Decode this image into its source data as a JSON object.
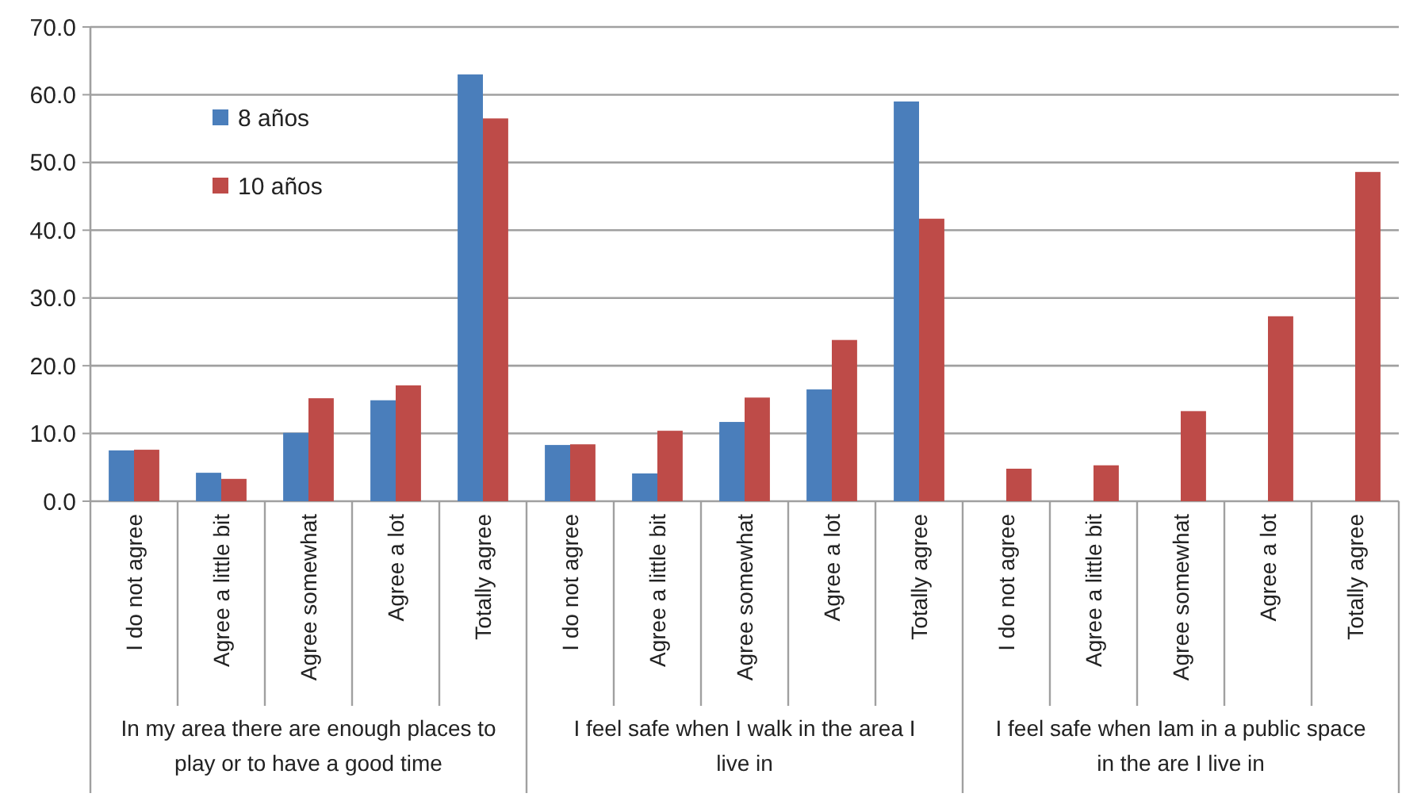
{
  "chart_data": {
    "type": "bar",
    "categories": [
      "I do not agree",
      "Agree a little bit",
      "Agree somewhat",
      "Agree a lot",
      "Totally agree",
      "I do not agree",
      "Agree a little bit",
      "Agree somewhat",
      "Agree a lot",
      "Totally agree",
      "I do not agree",
      "Agree a little bit",
      "Agree somewhat",
      "Agree a lot",
      "Totally agree"
    ],
    "series": [
      {
        "name": "8 años",
        "color": "#4a7ebb",
        "values": [
          7.5,
          4.2,
          10.1,
          14.9,
          63.0,
          8.3,
          4.1,
          11.7,
          16.5,
          59.0,
          null,
          null,
          null,
          null,
          null
        ]
      },
      {
        "name": "10 años",
        "color": "#be4b48",
        "values": [
          7.6,
          3.3,
          15.2,
          17.1,
          56.5,
          8.4,
          10.4,
          15.3,
          23.8,
          41.7,
          4.8,
          5.3,
          13.3,
          27.3,
          48.6
        ]
      }
    ],
    "ylim": [
      0,
      70
    ],
    "yticks": [
      {
        "value": 0,
        "label": "0.0"
      },
      {
        "value": 10,
        "label": "10.0"
      },
      {
        "value": 20,
        "label": "20.0"
      },
      {
        "value": 30,
        "label": "30.0"
      },
      {
        "value": 40,
        "label": "40.0"
      },
      {
        "value": 50,
        "label": "50.0"
      },
      {
        "value": 60,
        "label": "60.0"
      },
      {
        "value": 70,
        "label": "70.0"
      }
    ],
    "grid": "y",
    "legend": "top left",
    "annotations": [
      "In my area there are enough places to play or to have a good time",
      "I feel safe when I walk in the area I live in",
      "I feel safe when Iam in a public space in the are I live in"
    ]
  }
}
